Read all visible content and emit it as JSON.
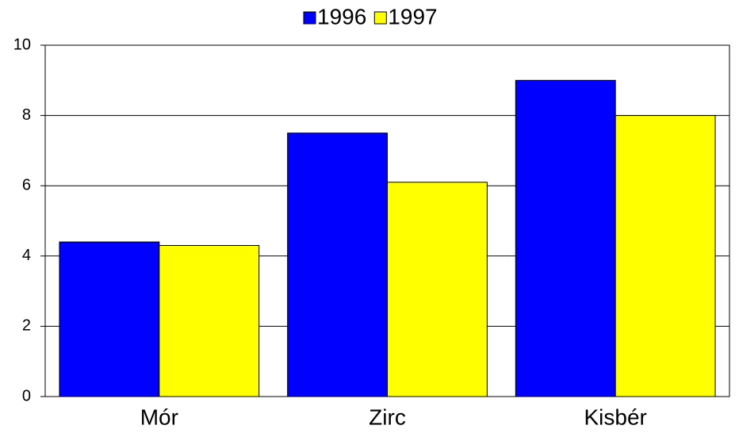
{
  "chart_data": {
    "type": "bar",
    "categories": [
      "Mór",
      "Zirc",
      "Kisbér"
    ],
    "series": [
      {
        "name": "1996",
        "color": "#0000ff",
        "values": [
          4.4,
          7.5,
          9.0
        ]
      },
      {
        "name": "1997",
        "color": "#ffff00",
        "values": [
          4.3,
          6.1,
          8.0
        ]
      }
    ],
    "ylim": [
      0,
      10
    ],
    "yticks": [
      0,
      2,
      4,
      6,
      8,
      10
    ],
    "grid": true,
    "legend": "top"
  }
}
